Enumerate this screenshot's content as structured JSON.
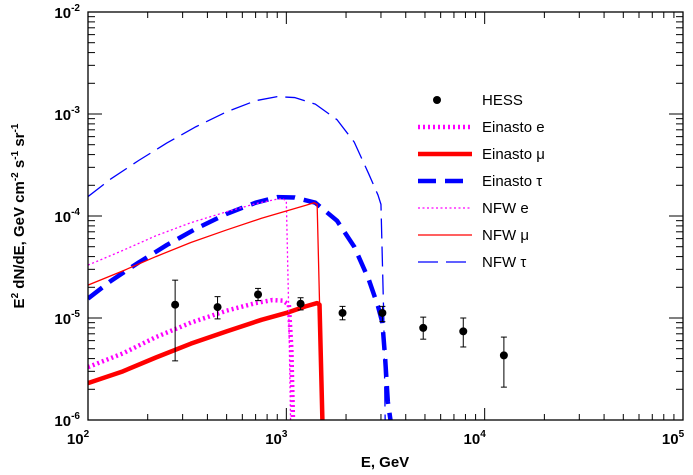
{
  "chart_data": {
    "type": "line",
    "xlabel": "E,  GeV",
    "ylabel_parts": [
      "E",
      "2",
      " dN/dE, GeV cm",
      "-2",
      " s",
      "-1",
      " sr",
      "-1"
    ],
    "x_scale": "log",
    "y_scale": "log",
    "xlim": [
      100,
      100000
    ],
    "ylim": [
      1e-06,
      0.01
    ],
    "x_ticks": [
      {
        "base": "10",
        "exp": "2",
        "value": 100
      },
      {
        "base": "10",
        "exp": "3",
        "value": 1000
      },
      {
        "base": "10",
        "exp": "4",
        "value": 10000
      },
      {
        "base": "10",
        "exp": "5",
        "value": 100000
      }
    ],
    "y_ticks": [
      {
        "base": "10",
        "exp": "-6",
        "value": 1e-06
      },
      {
        "base": "10",
        "exp": "-5",
        "value": 1e-05
      },
      {
        "base": "10",
        "exp": "-4",
        "value": 0.0001
      },
      {
        "base": "10",
        "exp": "-3",
        "value": 0.001
      },
      {
        "base": "10",
        "exp": "-2",
        "value": 0.01
      }
    ],
    "grid": false,
    "legend_position": "top-right",
    "data_points": {
      "name": "HESS",
      "color": "#000000",
      "points": [
        {
          "x": 275,
          "y": 1.35e-05,
          "ylo": 3.8e-06,
          "yhi": 2.35e-05
        },
        {
          "x": 450,
          "y": 1.28e-05,
          "ylo": 9.8e-06,
          "yhi": 1.62e-05
        },
        {
          "x": 720,
          "y": 1.7e-05,
          "ylo": 1.48e-05,
          "yhi": 1.95e-05
        },
        {
          "x": 1180,
          "y": 1.38e-05,
          "ylo": 1.2e-05,
          "yhi": 1.58e-05
        },
        {
          "x": 1920,
          "y": 1.12e-05,
          "ylo": 9.6e-06,
          "yhi": 1.3e-05
        },
        {
          "x": 3050,
          "y": 1.12e-05,
          "ylo": 9.2e-06,
          "yhi": 1.3e-05
        },
        {
          "x": 4900,
          "y": 8e-06,
          "ylo": 6.2e-06,
          "yhi": 1.02e-05
        },
        {
          "x": 7800,
          "y": 7.4e-06,
          "ylo": 5.2e-06,
          "yhi": 1e-05
        },
        {
          "x": 12500,
          "y": 4.3e-06,
          "ylo": 2.1e-06,
          "yhi": 6.5e-06
        }
      ]
    },
    "series": [
      {
        "name": "Einasto e",
        "color": "#ff00ff",
        "style": "dotted-thick",
        "points": [
          [
            100,
            3.3e-06
          ],
          [
            150,
            4.5e-06
          ],
          [
            220,
            6.5e-06
          ],
          [
            330,
            9e-06
          ],
          [
            500,
            1.18e-05
          ],
          [
            700,
            1.4e-05
          ],
          [
            850,
            1.5e-05
          ],
          [
            960,
            1.48e-05
          ],
          [
            1030,
            1.35e-05
          ],
          [
            1060,
            5e-06
          ],
          [
            1080,
            1e-06
          ]
        ]
      },
      {
        "name": "Einasto μ",
        "color": "#ff0000",
        "style": "solid-thick",
        "points": [
          [
            100,
            2.3e-06
          ],
          [
            150,
            3e-06
          ],
          [
            220,
            4.1e-06
          ],
          [
            330,
            5.6e-06
          ],
          [
            500,
            7.4e-06
          ],
          [
            750,
            9.6e-06
          ],
          [
            1000,
            1.12e-05
          ],
          [
            1250,
            1.3e-05
          ],
          [
            1430,
            1.4e-05
          ],
          [
            1470,
            1.35e-05
          ],
          [
            1520,
            1e-06
          ]
        ]
      },
      {
        "name": "Einasto τ",
        "color": "#0000ff",
        "style": "dashed-thick",
        "points": [
          [
            100,
            1.55e-05
          ],
          [
            130,
            2.3e-05
          ],
          [
            180,
            3.5e-05
          ],
          [
            250,
            5.2e-05
          ],
          [
            350,
            7.5e-05
          ],
          [
            500,
            0.000105
          ],
          [
            700,
            0.000135
          ],
          [
            900,
            0.000153
          ],
          [
            1100,
            0.000152
          ],
          [
            1400,
            0.000135
          ],
          [
            1800,
            9e-05
          ],
          [
            2200,
            5e-05
          ],
          [
            2600,
            2.4e-05
          ],
          [
            2900,
            1.3e-05
          ],
          [
            3050,
            9e-06
          ],
          [
            3150,
            4e-06
          ],
          [
            3250,
            1.5e-06
          ],
          [
            3350,
            1e-06
          ]
        ]
      },
      {
        "name": "NFW e",
        "color": "#ff00ff",
        "style": "dotted-thin",
        "points": [
          [
            100,
            3.3e-05
          ],
          [
            150,
            4.6e-05
          ],
          [
            220,
            6.4e-05
          ],
          [
            330,
            8.6e-05
          ],
          [
            500,
            0.00011
          ],
          [
            700,
            0.000132
          ],
          [
            880,
            0.000145
          ],
          [
            960,
            0.000148
          ],
          [
            1000,
            0.00014
          ],
          [
            1030,
            1e-05
          ],
          [
            1050,
            1e-06
          ]
        ]
      },
      {
        "name": "NFW μ",
        "color": "#ff0000",
        "style": "solid-thin",
        "points": [
          [
            100,
            2.1e-05
          ],
          [
            150,
            2.9e-05
          ],
          [
            220,
            4e-05
          ],
          [
            330,
            5.5e-05
          ],
          [
            500,
            7.3e-05
          ],
          [
            750,
            9.5e-05
          ],
          [
            1000,
            0.000112
          ],
          [
            1250,
            0.000127
          ],
          [
            1380,
            0.000135
          ],
          [
            1430,
            0.00013
          ],
          [
            1520,
            1e-06
          ]
        ]
      },
      {
        "name": "NFW τ",
        "color": "#0000ff",
        "style": "dashed-thin",
        "points": [
          [
            100,
            0.000155
          ],
          [
            130,
            0.00023
          ],
          [
            180,
            0.00035
          ],
          [
            250,
            0.00052
          ],
          [
            350,
            0.00075
          ],
          [
            500,
            0.00105
          ],
          [
            700,
            0.00135
          ],
          [
            900,
            0.00148
          ],
          [
            1100,
            0.00145
          ],
          [
            1400,
            0.00125
          ],
          [
            1800,
            0.00088
          ],
          [
            2200,
            0.00053
          ],
          [
            2600,
            0.00026
          ],
          [
            2900,
            0.00016
          ],
          [
            3000,
            0.00013
          ],
          [
            3100,
            1e-05
          ],
          [
            3150,
            1e-06
          ]
        ]
      }
    ]
  }
}
